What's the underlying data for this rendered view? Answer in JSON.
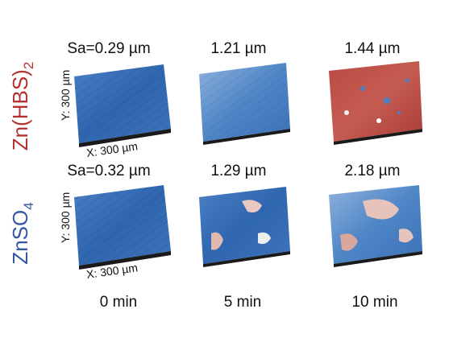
{
  "rows": [
    {
      "label_main": "Zn(HBS)",
      "label_sub": "2",
      "values": [
        "Sa=0.29 µm",
        "1.21 µm",
        "1.44 µm"
      ]
    },
    {
      "label_main": "ZnSO",
      "label_sub": "4",
      "values": [
        "Sa=0.32 µm",
        "1.29 µm",
        "2.18 µm"
      ]
    }
  ],
  "axis_labels": {
    "y": "Y: 300 µm",
    "x": "X: 300 µm"
  },
  "time_labels": [
    "0 min",
    "5 min",
    "10 min"
  ]
}
